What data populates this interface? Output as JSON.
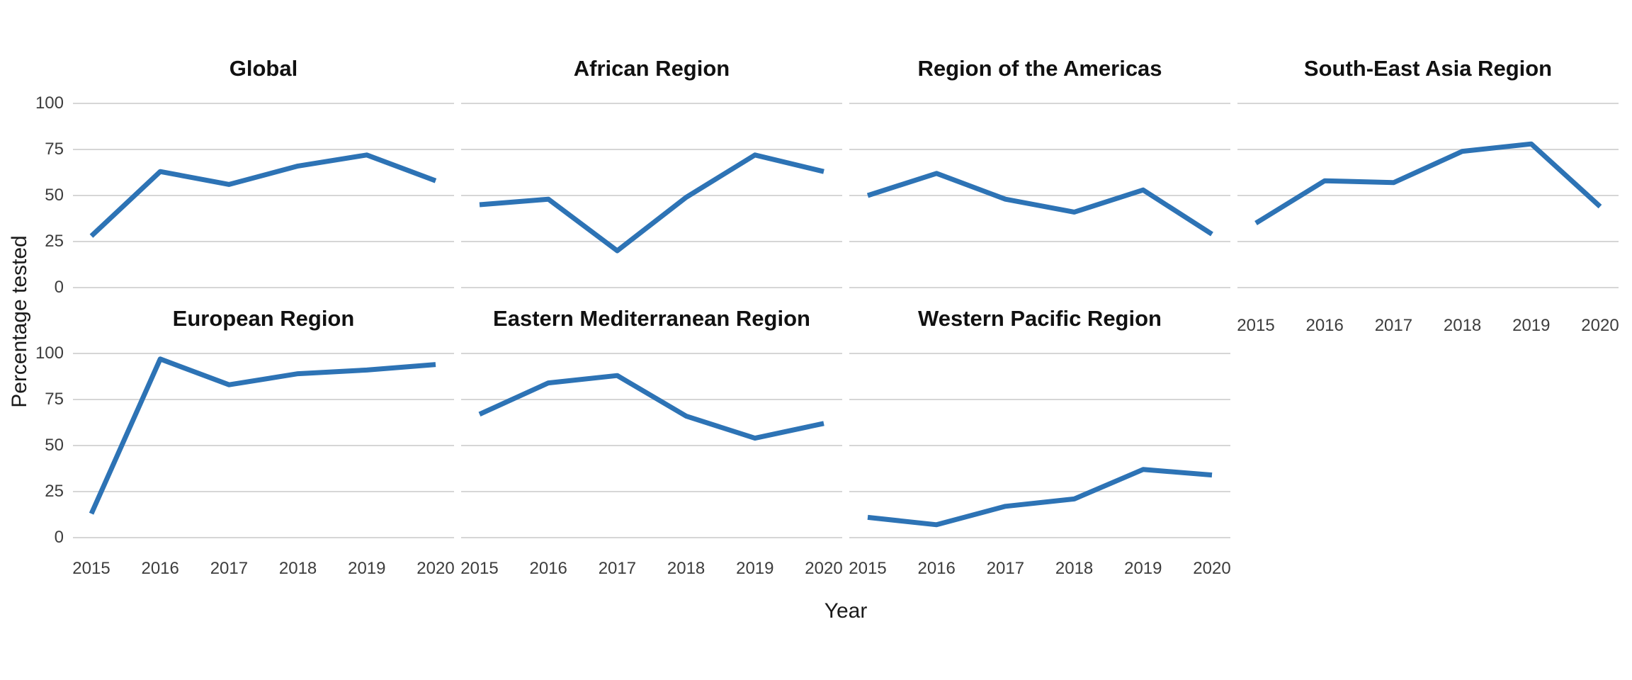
{
  "figure_title": "",
  "axes": {
    "x_title": "Year",
    "y_title": "Percentage tested",
    "y_tick_labels": [
      "100",
      "75",
      "50",
      "25",
      "0"
    ],
    "x_tick_labels": [
      "2015",
      "2016",
      "2017",
      "2018",
      "2019",
      "2020"
    ]
  },
  "style": {
    "line_color": "#2d73b5",
    "grid_color": "#d6d6d6",
    "tick_text_color": "#3d3d3d",
    "title_text_color": "#111111"
  },
  "chart_data": {
    "type": "line",
    "x": [
      2015,
      2016,
      2017,
      2018,
      2019,
      2020
    ],
    "xlabel": "Year",
    "ylabel": "Percentage tested",
    "ylim": [
      0,
      100
    ],
    "y_ticks": [
      100,
      75,
      50,
      25,
      0
    ],
    "grid": "horizontal-only",
    "legend": "none",
    "layout": {
      "rows": 2,
      "cols": 4
    },
    "facets": [
      {
        "title": "Global",
        "row": 0,
        "col": 0,
        "values": [
          28,
          63,
          56,
          66,
          72,
          58
        ],
        "show_x_labels": false,
        "show_y_labels": true
      },
      {
        "title": "African Region",
        "row": 0,
        "col": 1,
        "values": [
          45,
          48,
          20,
          49,
          72,
          63
        ],
        "show_x_labels": false,
        "show_y_labels": false
      },
      {
        "title": "Region of the Americas",
        "row": 0,
        "col": 2,
        "values": [
          50,
          62,
          48,
          41,
          53,
          29
        ],
        "show_x_labels": false,
        "show_y_labels": false
      },
      {
        "title": "South-East Asia Region",
        "row": 0,
        "col": 3,
        "values": [
          35,
          58,
          57,
          74,
          78,
          44
        ],
        "show_x_labels": true,
        "show_y_labels": false
      },
      {
        "title": "European Region",
        "row": 1,
        "col": 0,
        "values": [
          13,
          97,
          83,
          89,
          91,
          94
        ],
        "show_x_labels": true,
        "show_y_labels": true
      },
      {
        "title": "Eastern Mediterranean Region",
        "row": 1,
        "col": 1,
        "values": [
          67,
          84,
          88,
          66,
          54,
          62
        ],
        "show_x_labels": true,
        "show_y_labels": false
      },
      {
        "title": "Western Pacific Region",
        "row": 1,
        "col": 2,
        "values": [
          11,
          7,
          17,
          21,
          37,
          34
        ],
        "show_x_labels": true,
        "show_y_labels": false
      }
    ]
  }
}
